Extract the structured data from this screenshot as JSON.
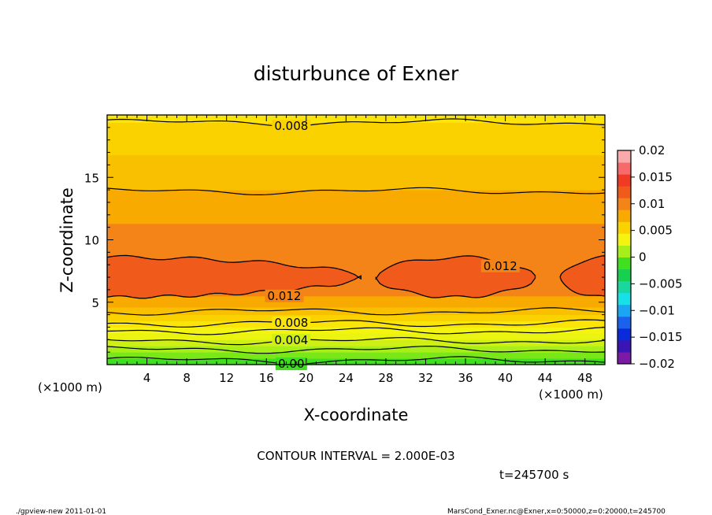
{
  "chart_data": {
    "type": "contour",
    "title": "disturbunce of Exner",
    "xlabel": "X-coordinate",
    "ylabel": "Z-coordinate",
    "x_unit": "(×1000 m)",
    "x_unit_right": "(×1000 m)",
    "y_unit": "(×1000 m)",
    "xlim": [
      0,
      50
    ],
    "ylim": [
      0,
      20
    ],
    "x_ticks": [
      4,
      8,
      12,
      16,
      20,
      24,
      28,
      32,
      36,
      40,
      44,
      48
    ],
    "y_ticks": [
      5,
      10,
      15
    ],
    "contour_interval_text": "CONTOUR INTERVAL = 2.000E-03",
    "time_text": "t=245700 s",
    "colorbar": {
      "range": [
        -0.02,
        0.02
      ],
      "tick_labels": [
        "0.02",
        "0.015",
        "0.01",
        "0.005",
        "0",
        "−0.005",
        "−0.01",
        "−0.015",
        "−0.02"
      ],
      "tick_values": [
        0.02,
        0.015,
        0.01,
        0.005,
        0,
        -0.005,
        -0.01,
        -0.015,
        -0.02
      ],
      "colors": [
        "#7a1aa6",
        "#3a14b4",
        "#0a2adc",
        "#1a62ee",
        "#1aa6f2",
        "#18e0e8",
        "#18d8a0",
        "#18d050",
        "#40e020",
        "#a8ee18",
        "#f4f410",
        "#fad200",
        "#f8aa00",
        "#f48418",
        "#f05a1a",
        "#f03a24",
        "#f86a6a",
        "#faaaaa"
      ]
    },
    "bands": [
      {
        "z": [
          0.0,
          0.5
        ],
        "value": 0.001,
        "color": "#40e020"
      },
      {
        "z": [
          0.5,
          1.0
        ],
        "value": 0.002,
        "color": "#7ae818"
      },
      {
        "z": [
          1.0,
          1.5
        ],
        "value": 0.003,
        "color": "#a8ee18"
      },
      {
        "z": [
          1.5,
          2.0
        ],
        "value": 0.004,
        "color": "#cef014"
      },
      {
        "z": [
          2.0,
          2.5
        ],
        "value": 0.005,
        "color": "#eaf410"
      },
      {
        "z": [
          2.5,
          3.0
        ],
        "value": 0.006,
        "color": "#f4f410"
      },
      {
        "z": [
          3.0,
          3.5
        ],
        "value": 0.007,
        "color": "#fae40a"
      },
      {
        "z": [
          3.5,
          4.0
        ],
        "value": 0.008,
        "color": "#fad200"
      },
      {
        "z": [
          4.0,
          4.6
        ],
        "value": 0.009,
        "color": "#f8c000"
      },
      {
        "z": [
          4.6,
          5.5
        ],
        "value": 0.01,
        "color": "#f8aa00"
      },
      {
        "z": [
          5.5,
          11.3
        ],
        "value": 0.011,
        "color": "#f48418"
      },
      {
        "z": [
          11.3,
          14.0
        ],
        "value": 0.01,
        "color": "#f8aa00"
      },
      {
        "z": [
          14.0,
          16.8
        ],
        "value": 0.009,
        "color": "#f8c000"
      },
      {
        "z": [
          16.8,
          19.4
        ],
        "value": 0.008,
        "color": "#fad200"
      },
      {
        "z": [
          19.4,
          20.0
        ],
        "value": 0.007,
        "color": "#fae40a"
      }
    ],
    "contour_lines": [
      {
        "level": 0.0,
        "label": "0.00",
        "z": 0.35,
        "label_x": 18.5
      },
      {
        "level": 0.002,
        "z": 1.2
      },
      {
        "level": 0.004,
        "label": "0.004",
        "z": 1.9,
        "label_x": 18.5
      },
      {
        "level": 0.006,
        "z": 2.7
      },
      {
        "level": 0.008,
        "label": "0.008",
        "z": 3.3,
        "label_x": 18.5
      },
      {
        "level": 0.01,
        "z": 4.25
      },
      {
        "level": 0.01,
        "z": 13.9
      },
      {
        "level": 0.008,
        "label": "0.008",
        "z": 19.4,
        "label_x": 18.5
      }
    ],
    "high_regions": [
      {
        "level": 0.012,
        "label": "0.012",
        "label_x": 17.8,
        "label_z": 5.5,
        "x_range": [
          0,
          25.5
        ]
      },
      {
        "level": 0.012,
        "label": "0.012",
        "label_x": 39.5,
        "label_z": 7.9,
        "x_range": [
          27,
          43
        ]
      },
      {
        "level": 0.012,
        "x_range": [
          45.5,
          50
        ]
      }
    ],
    "region_color": "#f05a1a"
  },
  "footer": {
    "left": "./gpview-new  2011-01-01",
    "right": "MarsCond_Exner.nc@Exner,x=0:50000,z=0:20000,t=245700"
  }
}
